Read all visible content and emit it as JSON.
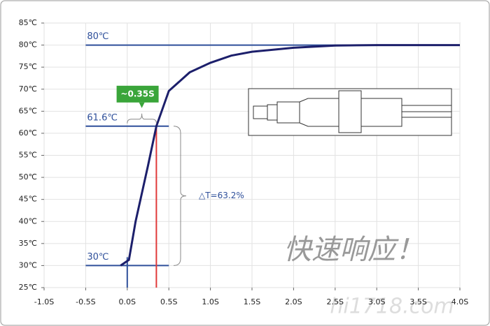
{
  "chart_data": {
    "type": "line",
    "xlim": [
      -1.0,
      4.0
    ],
    "xticks": [
      {
        "value": -1.0,
        "label": "-1.0S"
      },
      {
        "value": -0.5,
        "label": "-0.5S"
      },
      {
        "value": 0,
        "label": "0.0S"
      },
      {
        "value": 0.5,
        "label": "0.5S"
      },
      {
        "value": 1.0,
        "label": "1.0S"
      },
      {
        "value": 1.5,
        "label": "1.5S"
      },
      {
        "value": 2.0,
        "label": "2.0S"
      },
      {
        "value": 2.5,
        "label": "2.5S"
      },
      {
        "value": 3.0,
        "label": "3.0S"
      },
      {
        "value": 3.5,
        "label": "3.5S"
      },
      {
        "value": 4.0,
        "label": "4.0S"
      }
    ],
    "ylim": [
      25,
      85
    ],
    "yticks": [
      {
        "value": 25,
        "label": "25℃"
      },
      {
        "value": 30,
        "label": "30℃"
      },
      {
        "value": 35,
        "label": "35℃"
      },
      {
        "value": 40,
        "label": "40℃"
      },
      {
        "value": 45,
        "label": "45℃"
      },
      {
        "value": 50,
        "label": "50℃"
      },
      {
        "value": 55,
        "label": "55℃"
      },
      {
        "value": 60,
        "label": "60℃"
      },
      {
        "value": 65,
        "label": "65℃"
      },
      {
        "value": 70,
        "label": "70℃"
      },
      {
        "value": 75,
        "label": "75℃"
      },
      {
        "value": 80,
        "label": "80℃"
      },
      {
        "value": 85,
        "label": "85℃"
      }
    ],
    "grid": true,
    "series": [
      {
        "color": "#1c1f6b",
        "x": [
          -0.08,
          0.02,
          0.1,
          0.25,
          0.35,
          0.5,
          0.75,
          1.0,
          1.25,
          1.5,
          2.0,
          2.5,
          3.0,
          4.0
        ],
        "values": [
          30,
          31.3,
          40,
          52.7,
          61.6,
          69.6,
          73.8,
          76,
          77.6,
          78.5,
          79.4,
          79.9,
          80,
          80
        ]
      }
    ],
    "hlines": [
      {
        "value": 80,
        "label": "80℃",
        "from": -0.5,
        "to": 4.0
      },
      {
        "value": 61.6,
        "label": "61.6℃",
        "from": -0.5,
        "to": 0.5
      },
      {
        "value": 30,
        "label": "30℃",
        "from": -0.5,
        "to": 0.5
      }
    ],
    "vlines": [
      {
        "value": 0,
        "color": "#2e4f9a"
      },
      {
        "value": 0.35,
        "color": "#e03a3a"
      }
    ],
    "time_label": "~0.35S",
    "delta_label": "△T=63.2%",
    "slogan": "快速响应！",
    "watermark": "hi1718.com"
  }
}
